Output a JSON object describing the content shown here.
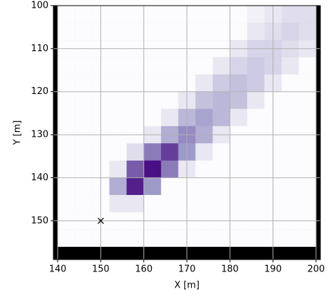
{
  "chart_data": {
    "type": "heatmap",
    "x_label": "X [m]",
    "y_label": "Y [m]",
    "xbins": [
      140,
      144,
      148,
      152,
      156,
      160,
      164,
      168,
      172,
      176,
      180,
      184,
      188,
      192,
      196,
      200
    ],
    "ybins": [
      100,
      104,
      108,
      112,
      116,
      120,
      124,
      128,
      132,
      136,
      140,
      144,
      148,
      152,
      156
    ],
    "z": [
      [
        0,
        0,
        0,
        0,
        0,
        0,
        0,
        0,
        0,
        0,
        0,
        0.05,
        0.1,
        0.15,
        0.15
      ],
      [
        0,
        0,
        0,
        0,
        0,
        0,
        0,
        0,
        0,
        0,
        0,
        0.1,
        0.15,
        0.2,
        0.15
      ],
      [
        0,
        0,
        0,
        0,
        0,
        0,
        0,
        0,
        0,
        0,
        0.1,
        0.2,
        0.2,
        0.15,
        0.1
      ],
      [
        0,
        0,
        0,
        0,
        0,
        0,
        0,
        0,
        0,
        0.1,
        0.2,
        0.25,
        0.2,
        0.1,
        0
      ],
      [
        0,
        0,
        0,
        0,
        0,
        0,
        0,
        0,
        0.1,
        0.25,
        0.3,
        0.25,
        0.1,
        0,
        0
      ],
      [
        0,
        0,
        0,
        0,
        0,
        0,
        0,
        0.1,
        0.3,
        0.35,
        0.3,
        0.1,
        0,
        0,
        0
      ],
      [
        0,
        0,
        0,
        0,
        0,
        0,
        0.1,
        0.35,
        0.45,
        0.35,
        0.1,
        0,
        0,
        0,
        0
      ],
      [
        0,
        0,
        0,
        0,
        0,
        0.1,
        0.4,
        0.55,
        0.4,
        0.1,
        0,
        0,
        0,
        0,
        0
      ],
      [
        0,
        0,
        0,
        0,
        0.15,
        0.6,
        0.8,
        0.5,
        0.1,
        0,
        0,
        0,
        0,
        0,
        0
      ],
      [
        0,
        0,
        0,
        0.1,
        0.7,
        0.95,
        0.6,
        0.1,
        0,
        0,
        0,
        0,
        0,
        0,
        0
      ],
      [
        0,
        0,
        0,
        0.4,
        0.9,
        0.5,
        0,
        0,
        0,
        0,
        0,
        0,
        0,
        0,
        0
      ],
      [
        0,
        0,
        0,
        0.1,
        0.1,
        0,
        0,
        0,
        0,
        0,
        0,
        0,
        0,
        0,
        0
      ],
      [
        0,
        0,
        0,
        0,
        0,
        0,
        0,
        0,
        0,
        0,
        0,
        0,
        0,
        0,
        0
      ],
      [
        0,
        0,
        0,
        0,
        0,
        0,
        0,
        0,
        0,
        0,
        0,
        0,
        0,
        0,
        0
      ]
    ],
    "colormap": [
      "#fcfbfd",
      "#9e9ac8",
      "#3f007d"
    ],
    "marker": {
      "x": 150,
      "y": 150
    },
    "xlim": [
      139,
      201
    ],
    "ylim": [
      159,
      100
    ],
    "xticks": [
      140,
      150,
      160,
      170,
      180,
      190,
      200
    ],
    "yticks": [
      100,
      110,
      120,
      130,
      140,
      150
    ],
    "grid": true
  }
}
